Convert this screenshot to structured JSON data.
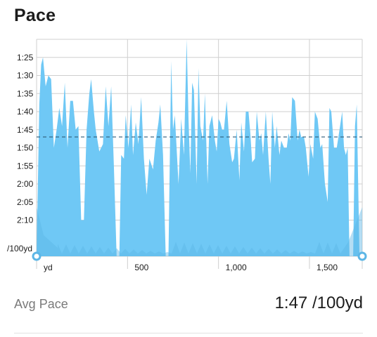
{
  "header": {
    "title": "Pace"
  },
  "chart_data": {
    "type": "area",
    "title": "Pace",
    "x_unit": "yd",
    "y_unit": "/100yd",
    "xlim": [
      0,
      1790
    ],
    "ylim": [
      "1:20",
      "2:20"
    ],
    "y_inverted": true,
    "x_ticks": [
      0,
      500,
      1000,
      1500
    ],
    "x_tick_labels": [
      "yd",
      "500",
      "1,000",
      "1,500"
    ],
    "y_ticks": [
      "1:25",
      "1:30",
      "1:35",
      "1:40",
      "1:45",
      "1:50",
      "1:55",
      "2:00",
      "2:05",
      "2:10"
    ],
    "avg_line": "1:47",
    "series": [
      {
        "type": "area",
        "x": [
          0,
          15,
          25,
          35,
          50,
          65,
          80,
          95,
          110,
          125,
          140,
          155,
          170,
          185,
          200,
          215,
          230,
          245,
          260,
          275,
          290,
          300,
          315,
          325,
          345,
          365,
          380,
          395,
          410,
          425,
          440,
          455,
          465,
          480,
          490,
          505,
          520,
          530,
          545,
          560,
          575,
          590,
          605,
          620,
          640,
          655,
          670,
          680,
          695,
          710,
          725,
          740,
          750,
          760,
          780,
          795,
          810,
          825,
          835,
          845,
          855,
          865,
          880,
          890,
          900,
          915,
          925,
          940,
          950,
          965,
          980,
          990,
          1000,
          1010,
          1020,
          1030,
          1045,
          1060,
          1075,
          1085,
          1100,
          1115,
          1125,
          1140,
          1150,
          1165,
          1175,
          1185,
          1200,
          1210,
          1225,
          1235,
          1245,
          1260,
          1275,
          1285,
          1295,
          1310,
          1320,
          1335,
          1345,
          1360,
          1375,
          1385,
          1395,
          1405,
          1420,
          1435,
          1445,
          1455,
          1470,
          1480,
          1495,
          1505,
          1520,
          1530,
          1545,
          1560,
          1570,
          1585,
          1600,
          1610,
          1620,
          1635,
          1650,
          1665,
          1680,
          1690,
          1700,
          1710,
          1720,
          1740,
          1750,
          1760,
          1775,
          1790
        ],
        "y": [
          "2:20",
          "1:38",
          "1:27",
          "1:25",
          "1:33",
          "1:30",
          "1:31",
          "1:50",
          "1:45",
          "1:39",
          "1:44",
          "1:32",
          "1:50",
          "1:37",
          "1:37",
          "1:45",
          "1:44",
          "2:10",
          "2:10",
          "1:45",
          "1:35",
          "1:31",
          "1:40",
          "1:45",
          "1:51",
          "1:49",
          "1:33",
          "1:44",
          "1:33",
          "1:55",
          "2:20",
          "2:20",
          "1:52",
          "1:53",
          "1:41",
          "1:50",
          "1:38",
          "1:52",
          "1:43",
          "1:49",
          "1:36",
          "1:53",
          "2:03",
          "1:53",
          "1:56",
          "1:48",
          "1:43",
          "1:38",
          "1:52",
          "2:20",
          "2:20",
          "1:26",
          "1:45",
          "1:41",
          "2:00",
          "1:42",
          "1:52",
          "1:20",
          "1:42",
          "1:57",
          "1:32",
          "1:34",
          "2:00",
          "1:28",
          "1:44",
          "1:48",
          "1:35",
          "2:00",
          "1:44",
          "1:41",
          "1:48",
          "1:51",
          "1:42",
          "1:43",
          "1:45",
          "1:45",
          "1:37",
          "1:49",
          "1:54",
          "1:53",
          "1:45",
          "1:59",
          "1:43",
          "1:51",
          "1:40",
          "1:40",
          "1:46",
          "1:54",
          "1:53",
          "1:40",
          "1:48",
          "1:46",
          "1:52",
          "1:40",
          "1:53",
          "2:00",
          "1:40",
          "1:50",
          "1:44",
          "1:52",
          "1:48",
          "1:50",
          "1:50",
          "1:46",
          "1:48",
          "1:36",
          "1:37",
          "1:48",
          "1:45",
          "1:47",
          "1:47",
          "1:50",
          "1:58",
          "1:49",
          "1:53",
          "1:40",
          "1:42",
          "1:50",
          "1:49",
          "2:00",
          "2:05",
          "1:39",
          "1:40",
          "1:50",
          "1:50",
          "1:45",
          "1:40",
          "1:50",
          "1:52",
          "1:50",
          "2:20",
          "2:20",
          "1:44",
          "1:38",
          "2:20",
          "2:20"
        ]
      }
    ]
  },
  "stats": {
    "label": "Avg Pace",
    "value": "1:47 /100yd"
  },
  "colors": {
    "area": "#6fc8f5",
    "area_dark": "#5cb6e6",
    "grid": "#cfcfcf",
    "avg_line": "#2e5b78",
    "axis_text": "#1c1c1c",
    "marker_fill": "#ffffff",
    "marker_stroke": "#5cb6e6"
  }
}
